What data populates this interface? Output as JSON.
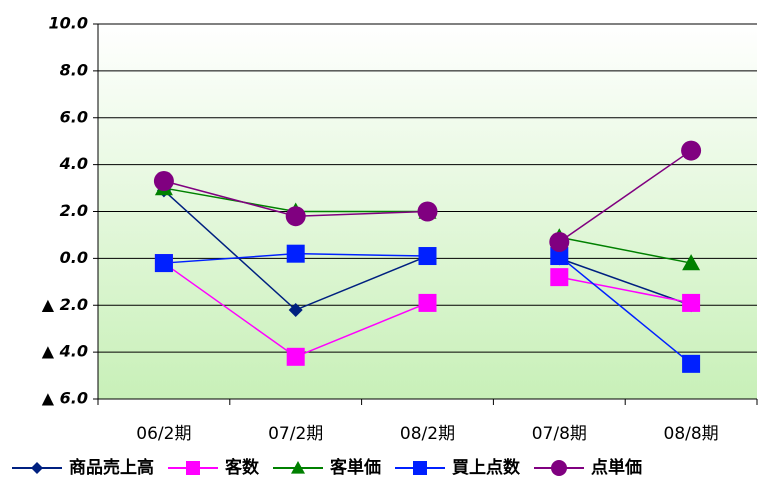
{
  "chart_data": {
    "type": "line",
    "categories": [
      "06/2期",
      "07/2期",
      "08/2期",
      "07/8期",
      "08/8期"
    ],
    "ylim": [
      -6,
      10
    ],
    "yticks": [
      {
        "value": -6,
        "label": "▲ 6.0"
      },
      {
        "value": -4,
        "label": "▲ 4.0"
      },
      {
        "value": -2,
        "label": "▲ 2.0"
      },
      {
        "value": 0,
        "label": "0.0"
      },
      {
        "value": 2,
        "label": "2.0"
      },
      {
        "value": 4,
        "label": "4.0"
      },
      {
        "value": 6,
        "label": "6.0"
      },
      {
        "value": 8,
        "label": "8.0"
      },
      {
        "value": 10,
        "label": "10.0"
      }
    ],
    "grid": true,
    "series": [
      {
        "name": "商品売上高",
        "color": "#002080",
        "marker": "diamond",
        "values": [
          2.9,
          -2.2,
          0.1,
          0.0,
          -2.0
        ]
      },
      {
        "name": "客数",
        "color": "#ff00ff",
        "marker": "square",
        "values": [
          -0.2,
          -4.2,
          -1.9,
          -0.8,
          -1.9
        ]
      },
      {
        "name": "客単価",
        "color": "#008000",
        "marker": "triangle",
        "values": [
          3.0,
          2.0,
          2.0,
          0.9,
          -0.2
        ]
      },
      {
        "name": "買上点数",
        "color": "#0020ff",
        "marker": "square",
        "values": [
          -0.2,
          0.2,
          0.1,
          0.1,
          -4.5
        ]
      },
      {
        "name": "点単価",
        "color": "#800080",
        "marker": "circle",
        "values": [
          3.3,
          1.8,
          2.0,
          0.7,
          4.6
        ]
      }
    ]
  }
}
